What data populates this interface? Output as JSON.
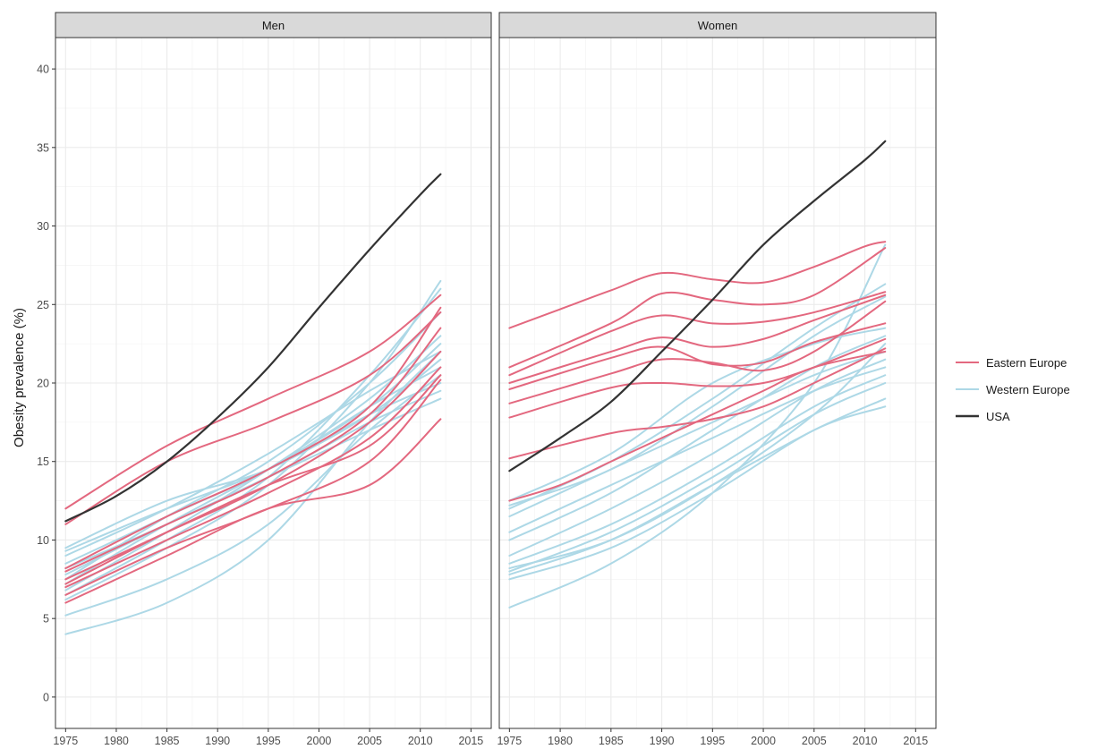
{
  "chart_data": {
    "type": "line",
    "ylabel": "Obesity prevalence (%)",
    "xlim": [
      1974,
      2017
    ],
    "ylim": [
      -2,
      42
    ],
    "x_ticks": [
      1975,
      1980,
      1985,
      1990,
      1995,
      2000,
      2005,
      2010,
      2015
    ],
    "y_ticks": [
      0,
      5,
      10,
      15,
      20,
      25,
      30,
      35,
      40
    ],
    "grid": true,
    "legend_position": "right",
    "groups": [
      {
        "name": "Eastern Europe",
        "color": "#e3687f"
      },
      {
        "name": "Western Europe",
        "color": "#add8e6"
      },
      {
        "name": "USA",
        "color": "#333333"
      }
    ],
    "panels": [
      {
        "label": "Men",
        "series": [
          {
            "group": "Western Europe",
            "x": [
              1975,
              1985,
              1995,
              2005,
              2012
            ],
            "y": [
              4.0,
              6.0,
              10.0,
              17.5,
              22.0
            ]
          },
          {
            "group": "Western Europe",
            "x": [
              1975,
              1985,
              1995,
              2005,
              2012
            ],
            "y": [
              5.2,
              7.5,
              11.0,
              17.0,
              20.5
            ]
          },
          {
            "group": "Western Europe",
            "x": [
              1975,
              1985,
              1995,
              2005,
              2012
            ],
            "y": [
              6.2,
              9.5,
              13.5,
              20.0,
              26.5
            ]
          },
          {
            "group": "Western Europe",
            "x": [
              1975,
              1985,
              1995,
              2005,
              2012
            ],
            "y": [
              6.5,
              10.0,
              14.0,
              20.5,
              26.0
            ]
          },
          {
            "group": "Western Europe",
            "x": [
              1975,
              1985,
              1995,
              2005,
              2012
            ],
            "y": [
              6.8,
              10.5,
              14.5,
              19.0,
              23.0
            ]
          },
          {
            "group": "Western Europe",
            "x": [
              1975,
              1985,
              1995,
              2005,
              2012
            ],
            "y": [
              7.2,
              11.0,
              14.5,
              18.5,
              22.5
            ]
          },
          {
            "group": "Western Europe",
            "x": [
              1975,
              1985,
              1995,
              2005,
              2012
            ],
            "y": [
              7.5,
              11.5,
              15.0,
              20.0,
              24.5
            ]
          },
          {
            "group": "Western Europe",
            "x": [
              1975,
              1985,
              1995,
              2005,
              2012
            ],
            "y": [
              7.8,
              11.0,
              14.0,
              17.5,
              19.5
            ]
          },
          {
            "group": "Western Europe",
            "x": [
              1975,
              1985,
              1995,
              2005,
              2012
            ],
            "y": [
              8.2,
              11.0,
              14.0,
              17.0,
              19.0
            ]
          },
          {
            "group": "Western Europe",
            "x": [
              1975,
              1985,
              1995,
              2005,
              2012
            ],
            "y": [
              8.5,
              11.5,
              14.5,
              18.5,
              21.0
            ]
          },
          {
            "group": "Western Europe",
            "x": [
              1975,
              1985,
              1995,
              2005,
              2012
            ],
            "y": [
              9.0,
              12.0,
              15.5,
              19.5,
              22.0
            ]
          },
          {
            "group": "Western Europe",
            "x": [
              1975,
              1985,
              1995,
              2005,
              2012
            ],
            "y": [
              9.3,
              12.0,
              14.5,
              18.0,
              21.5
            ]
          },
          {
            "group": "Western Europe",
            "x": [
              1975,
              1985,
              1995,
              2005,
              2012
            ],
            "y": [
              9.5,
              12.5,
              14.5,
              18.0,
              20.0
            ]
          },
          {
            "group": "Eastern Europe",
            "x": [
              1975,
              1985,
              1995,
              2005,
              2012
            ],
            "y": [
              12.0,
              16.0,
              19.0,
              22.0,
              25.6
            ]
          },
          {
            "group": "Eastern Europe",
            "x": [
              1975,
              1985,
              1995,
              2005,
              2012
            ],
            "y": [
              11.0,
              15.0,
              17.5,
              20.5,
              24.5
            ]
          },
          {
            "group": "Eastern Europe",
            "x": [
              1975,
              1985,
              1995,
              2005,
              2012
            ],
            "y": [
              8.0,
              11.0,
              14.0,
              18.0,
              23.5
            ]
          },
          {
            "group": "Eastern Europe",
            "x": [
              1975,
              1985,
              1995,
              2005,
              2012
            ],
            "y": [
              8.2,
              11.5,
              14.5,
              18.5,
              24.8
            ]
          },
          {
            "group": "Eastern Europe",
            "x": [
              1975,
              1985,
              1995,
              2005,
              2012
            ],
            "y": [
              7.5,
              10.5,
              13.5,
              17.5,
              22.0
            ]
          },
          {
            "group": "Eastern Europe",
            "x": [
              1975,
              1985,
              1995,
              2005,
              2012
            ],
            "y": [
              7.0,
              10.0,
              13.0,
              16.5,
              21.0
            ]
          },
          {
            "group": "Eastern Europe",
            "x": [
              1975,
              1985,
              1995,
              2005,
              2012
            ],
            "y": [
              7.2,
              10.5,
              13.5,
              16.0,
              20.5
            ]
          },
          {
            "group": "Eastern Europe",
            "x": [
              1975,
              1985,
              1995,
              2005,
              2012
            ],
            "y": [
              6.5,
              9.5,
              12.0,
              15.0,
              20.2
            ]
          },
          {
            "group": "Eastern Europe",
            "x": [
              1975,
              1985,
              1995,
              2005,
              2012
            ],
            "y": [
              6.0,
              9.0,
              12.0,
              13.5,
              17.7
            ]
          },
          {
            "group": "USA",
            "x": [
              1975,
              1980,
              1985,
              1990,
              1995,
              2000,
              2005,
              2010,
              2012
            ],
            "y": [
              11.2,
              12.8,
              15.0,
              17.8,
              21.0,
              24.8,
              28.5,
              32.0,
              33.3
            ]
          }
        ]
      },
      {
        "label": "Women",
        "series": [
          {
            "group": "Western Europe",
            "x": [
              1975,
              1985,
              1995,
              2005,
              2012
            ],
            "y": [
              5.7,
              8.5,
              13.0,
              20.0,
              28.8
            ]
          },
          {
            "group": "Western Europe",
            "x": [
              1975,
              1985,
              1995,
              2005,
              2012
            ],
            "y": [
              7.5,
              9.5,
              13.0,
              17.0,
              18.5
            ]
          },
          {
            "group": "Western Europe",
            "x": [
              1975,
              1985,
              1995,
              2005,
              2012
            ],
            "y": [
              7.8,
              10.0,
              13.5,
              17.0,
              19.0
            ]
          },
          {
            "group": "Western Europe",
            "x": [
              1975,
              1985,
              1995,
              2005,
              2012
            ],
            "y": [
              8.0,
              10.5,
              14.0,
              18.0,
              20.0
            ]
          },
          {
            "group": "Western Europe",
            "x": [
              1975,
              1985,
              1995,
              2005,
              2012
            ],
            "y": [
              8.5,
              11.0,
              14.5,
              18.5,
              20.5
            ]
          },
          {
            "group": "Western Europe",
            "x": [
              1975,
              1985,
              1995,
              2005,
              2012
            ],
            "y": [
              9.0,
              12.0,
              15.5,
              19.5,
              21.5
            ]
          },
          {
            "group": "Western Europe",
            "x": [
              1975,
              1985,
              1995,
              2005,
              2012
            ],
            "y": [
              10.0,
              13.0,
              17.0,
              21.0,
              23.0
            ]
          },
          {
            "group": "Western Europe",
            "x": [
              1975,
              1985,
              1995,
              2005,
              2012
            ],
            "y": [
              10.5,
              13.5,
              16.5,
              19.5,
              21.0
            ]
          },
          {
            "group": "Western Europe",
            "x": [
              1975,
              1985,
              1995,
              2005,
              2012
            ],
            "y": [
              11.5,
              14.5,
              17.5,
              20.5,
              22.0
            ]
          },
          {
            "group": "Western Europe",
            "x": [
              1975,
              1985,
              1995,
              2005,
              2012
            ],
            "y": [
              12.0,
              15.0,
              19.0,
              23.5,
              26.3
            ]
          },
          {
            "group": "Western Europe",
            "x": [
              1975,
              1985,
              1995,
              2005,
              2012
            ],
            "y": [
              12.2,
              14.5,
              18.5,
              23.0,
              25.5
            ]
          },
          {
            "group": "Western Europe",
            "x": [
              1975,
              1985,
              1995,
              2005,
              2012
            ],
            "y": [
              12.5,
              15.5,
              20.0,
              22.5,
              23.5
            ]
          },
          {
            "group": "Western Europe",
            "x": [
              1975,
              1985,
              1995,
              2005,
              2012
            ],
            "y": [
              8.2,
              10.0,
              13.5,
              18.0,
              22.5
            ]
          },
          {
            "group": "Eastern Europe",
            "x": [
              1975,
              1980,
              1985,
              1990,
              1995,
              2000,
              2005,
              2010,
              2012
            ],
            "y": [
              23.5,
              24.7,
              25.9,
              27.0,
              26.6,
              26.4,
              27.4,
              28.7,
              29.0
            ]
          },
          {
            "group": "Eastern Europe",
            "x": [
              1975,
              1985,
              1990,
              1995,
              2000,
              2005,
              2012
            ],
            "y": [
              21.0,
              23.8,
              25.7,
              25.3,
              25.0,
              25.6,
              28.6
            ]
          },
          {
            "group": "Eastern Europe",
            "x": [
              1975,
              1985,
              1990,
              1995,
              2000,
              2005,
              2012
            ],
            "y": [
              20.5,
              23.3,
              24.3,
              23.8,
              23.9,
              24.5,
              25.8
            ]
          },
          {
            "group": "Eastern Europe",
            "x": [
              1975,
              1985,
              1990,
              1995,
              2000,
              2005,
              2012
            ],
            "y": [
              20.0,
              22.0,
              22.9,
              22.3,
              22.8,
              24.0,
              25.6
            ]
          },
          {
            "group": "Eastern Europe",
            "x": [
              1975,
              1985,
              1990,
              1995,
              2000,
              2005,
              2012
            ],
            "y": [
              19.6,
              21.6,
              22.3,
              21.2,
              21.3,
              22.6,
              23.8
            ]
          },
          {
            "group": "Eastern Europe",
            "x": [
              1975,
              1985,
              1990,
              1995,
              2000,
              2005,
              2012
            ],
            "y": [
              18.7,
              20.6,
              21.5,
              21.3,
              20.8,
              22.0,
              25.2
            ]
          },
          {
            "group": "Eastern Europe",
            "x": [
              1975,
              1985,
              1990,
              1995,
              2000,
              2005,
              2012
            ],
            "y": [
              17.8,
              19.7,
              20.0,
              19.8,
              20.0,
              21.0,
              22.8
            ]
          },
          {
            "group": "Eastern Europe",
            "x": [
              1975,
              1985,
              1990,
              1995,
              2000,
              2005,
              2012
            ],
            "y": [
              15.2,
              16.8,
              17.2,
              17.7,
              18.5,
              20.0,
              22.2
            ]
          },
          {
            "group": "Eastern Europe",
            "x": [
              1975,
              1980,
              1985,
              1990,
              1995,
              2000,
              2005,
              2012
            ],
            "y": [
              12.5,
              13.5,
              15.0,
              16.5,
              18.0,
              19.5,
              21.0,
              22.0
            ]
          },
          {
            "group": "USA",
            "x": [
              1975,
              1980,
              1985,
              1990,
              1995,
              2000,
              2005,
              2010,
              2012
            ],
            "y": [
              14.4,
              16.5,
              18.8,
              22.0,
              25.3,
              28.8,
              31.6,
              34.2,
              35.4
            ]
          }
        ]
      }
    ]
  }
}
